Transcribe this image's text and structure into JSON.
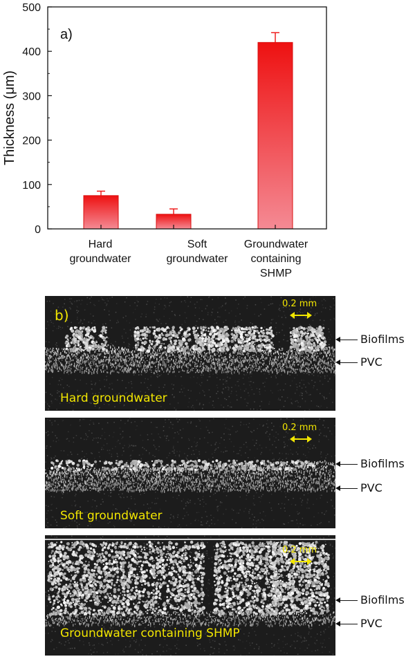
{
  "chart_data": {
    "type": "bar",
    "panel_label": "a)",
    "ylabel": "Thickness (μm)",
    "ylim": [
      0,
      500
    ],
    "yticks": [
      0,
      100,
      200,
      300,
      400,
      500
    ],
    "categories": [
      "Hard\ngroundwater",
      "Soft\ngroundwater",
      "Groundwater\ncontaining\nSHMP"
    ],
    "values": [
      75,
      33,
      420
    ],
    "errors": [
      10,
      12,
      22
    ],
    "bar_color": "#ee1111",
    "grid": false
  },
  "images": {
    "panel_label": "b)",
    "scale_label": "0.2 mm",
    "caption_color": "#f2e600",
    "frames": [
      {
        "caption": "Hard groundwater",
        "annotations": [
          "Biofilms",
          "PVC"
        ]
      },
      {
        "caption": "Soft groundwater",
        "annotations": [
          "Biofilms",
          "PVC"
        ]
      },
      {
        "caption": "Groundwater containing SHMP",
        "annotations": [
          "Biofilms",
          "PVC"
        ]
      }
    ]
  }
}
